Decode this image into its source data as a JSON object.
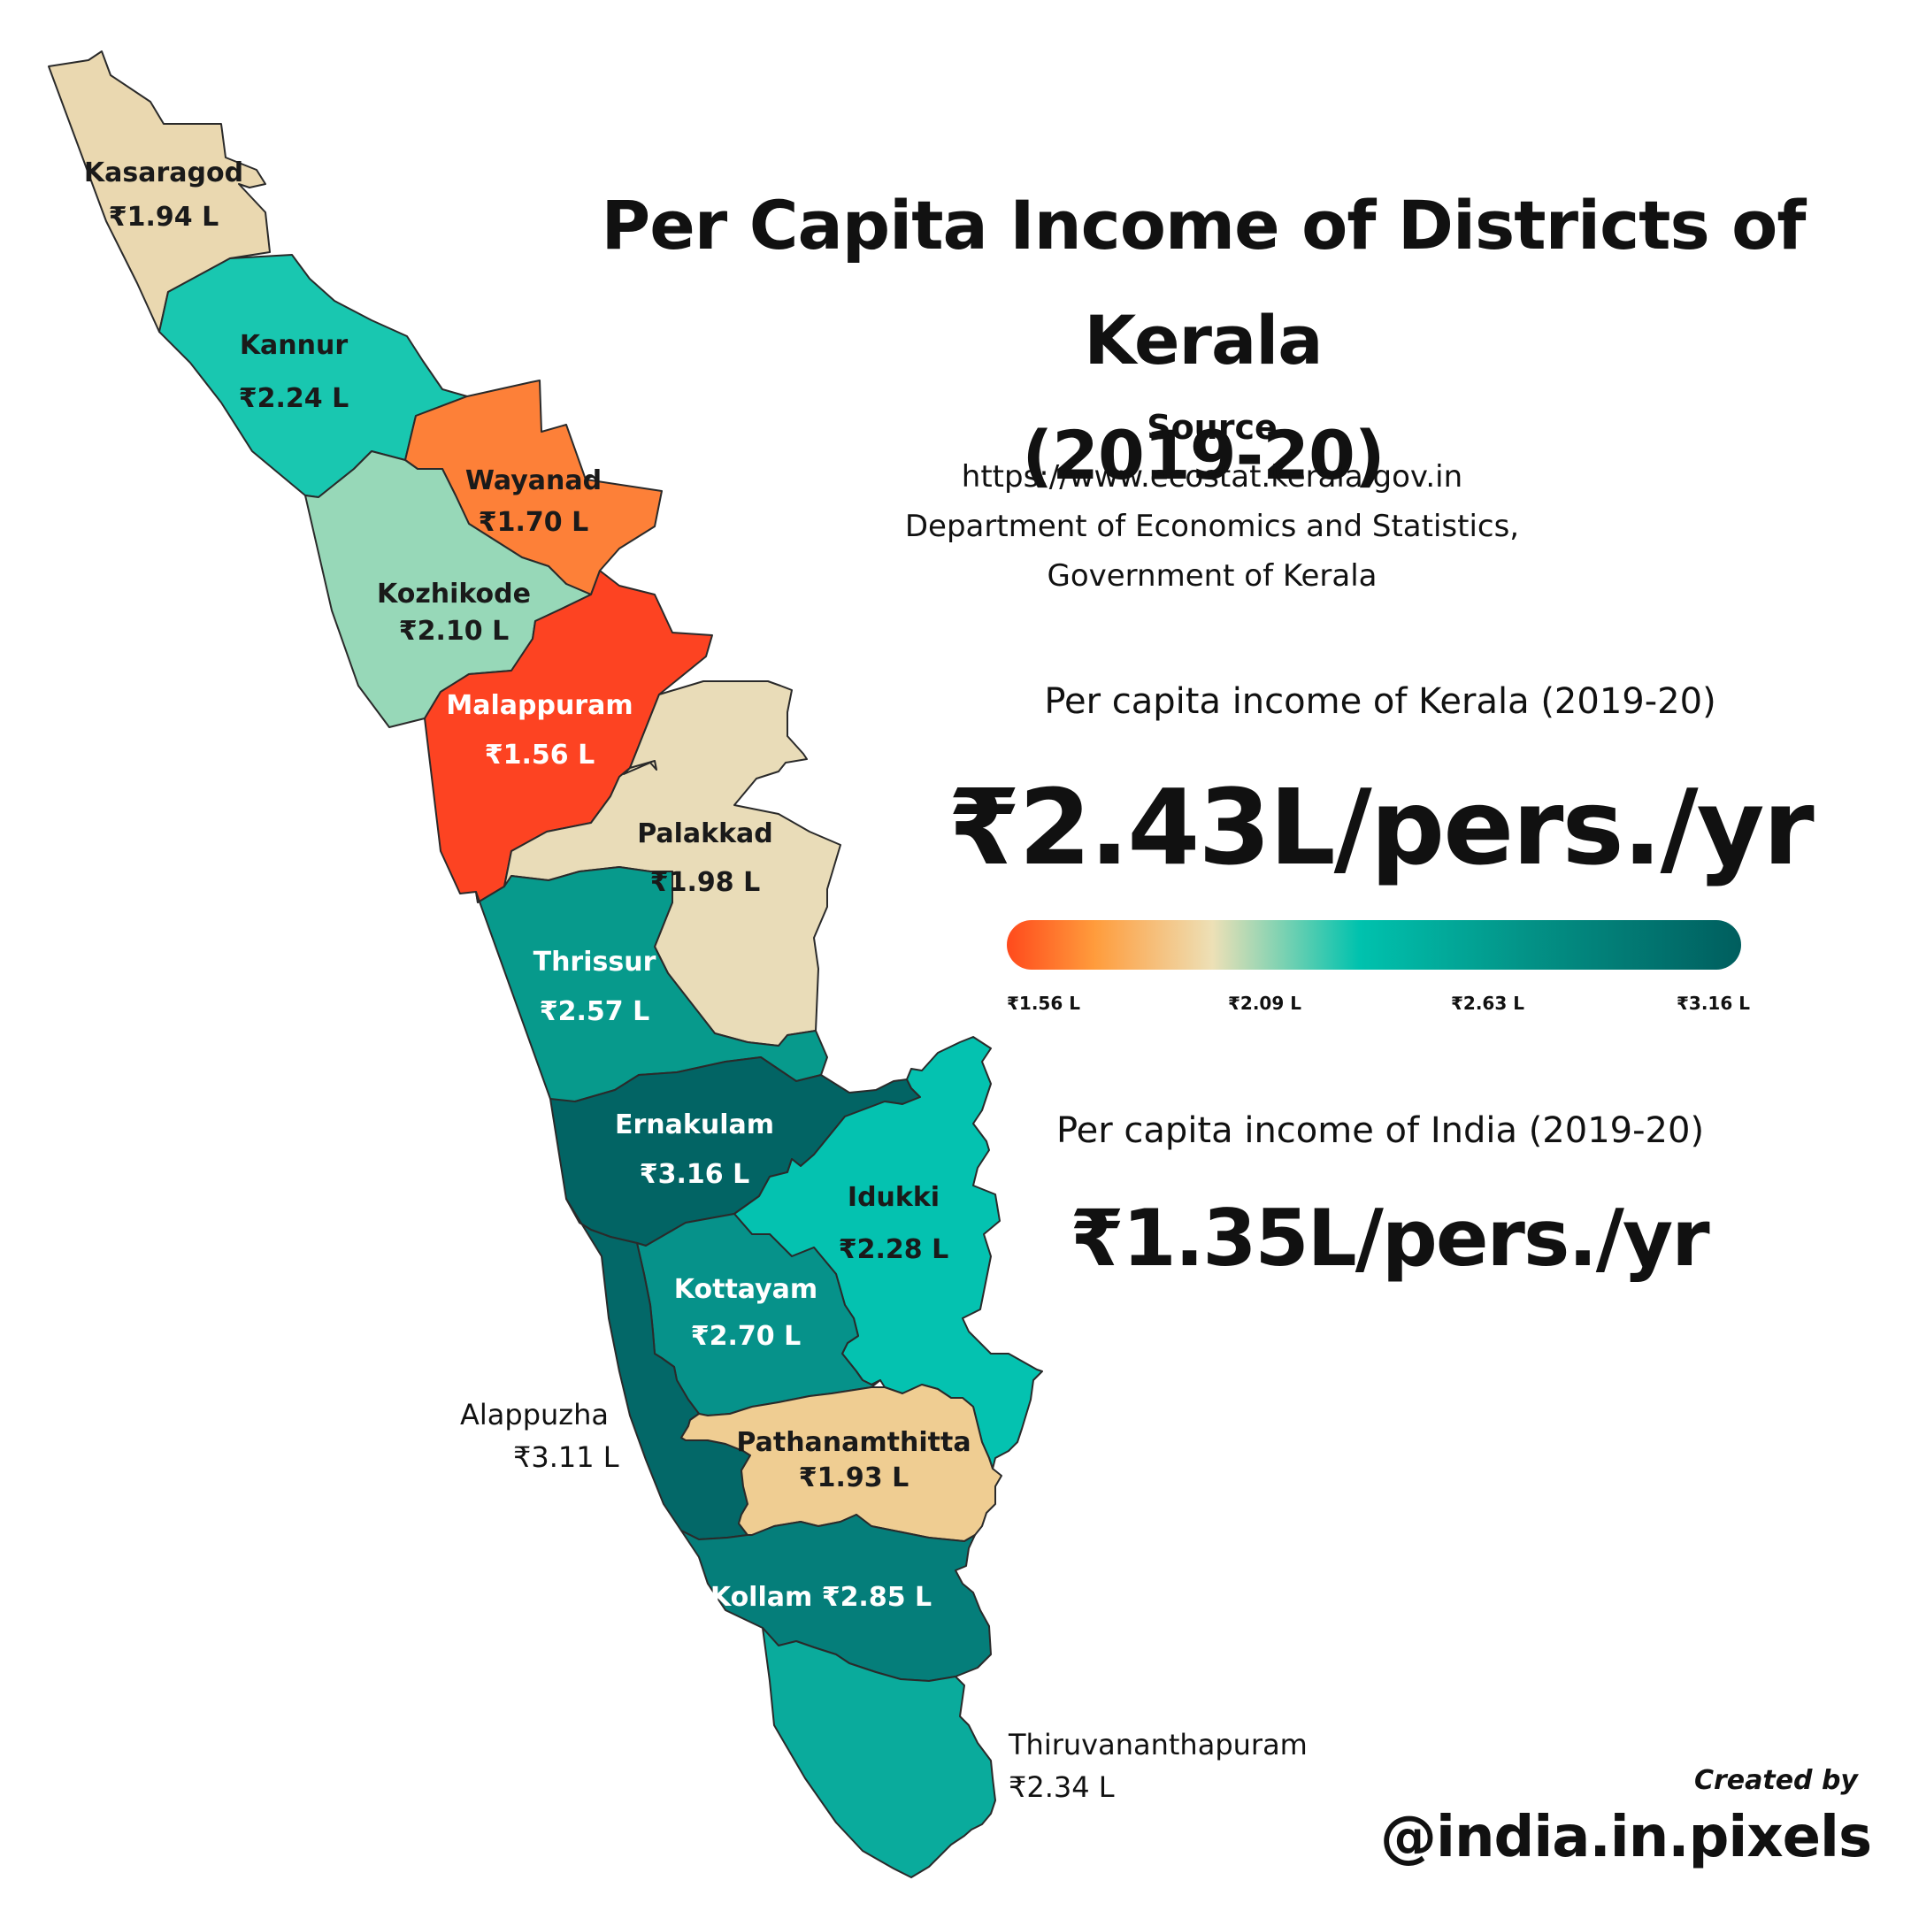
{
  "title_line1": "Per Capita Income of Districts of Kerala",
  "title_line2": "(2019-20)",
  "source": {
    "heading": "Source",
    "url": "https://www.ecostat.kerala.gov.in",
    "org_line1": "Department of Economics and Statistics,",
    "org_line2": "Government of Kerala"
  },
  "kerala": {
    "label": "Per capita income of Kerala (2019-20)",
    "value": "₹2.43L/pers./yr"
  },
  "india": {
    "label": "Per capita income of India (2019-20)",
    "value": "₹1.35L/pers./yr"
  },
  "scale": {
    "ticks": [
      "₹1.56 L",
      "₹2.09 L",
      "₹2.63 L",
      "₹3.16 L"
    ],
    "min": 1.56,
    "max": 3.16
  },
  "credit": {
    "line1": "Created by",
    "handle": "@india.in.pixels"
  },
  "districts": [
    {
      "name": "Kasaragod",
      "value": "₹1.94 L",
      "income": 1.94,
      "color": "#ead8b0"
    },
    {
      "name": "Kannur",
      "value": "₹2.24 L",
      "income": 2.24,
      "color": "#19c7b0"
    },
    {
      "name": "Wayanad",
      "value": "₹1.70 L",
      "income": 1.7,
      "color": "#fd8038"
    },
    {
      "name": "Kozhikode",
      "value": "₹2.10 L",
      "income": 2.1,
      "color": "#97d8b8"
    },
    {
      "name": "Malappuram",
      "value": "₹1.56 L",
      "income": 1.56,
      "color": "#fd4322"
    },
    {
      "name": "Palakkad",
      "value": "₹1.98 L",
      "income": 1.98,
      "color": "#e9dcb8"
    },
    {
      "name": "Thrissur",
      "value": "₹2.57 L",
      "income": 2.57,
      "color": "#079a8c"
    },
    {
      "name": "Ernakulam",
      "value": "₹3.16 L",
      "income": 3.16,
      "color": "#026464"
    },
    {
      "name": "Idukki",
      "value": "₹2.28 L",
      "income": 2.28,
      "color": "#04c2b0"
    },
    {
      "name": "Kottayam",
      "value": "₹2.70 L",
      "income": 2.7,
      "color": "#06928a"
    },
    {
      "name": "Alappuzha",
      "value": "₹3.11 L",
      "income": 3.11,
      "color": "#036868"
    },
    {
      "name": "Pathanamthitta",
      "value": "₹1.93 L",
      "income": 1.93,
      "color": "#efcd92"
    },
    {
      "name": "Kollam",
      "value": "₹2.85 L",
      "income": 2.85,
      "color": "#057e7a"
    },
    {
      "name": "Thiruvananthapuram",
      "value": "₹2.34 L",
      "income": 2.34,
      "color": "#0aab9c"
    }
  ]
}
